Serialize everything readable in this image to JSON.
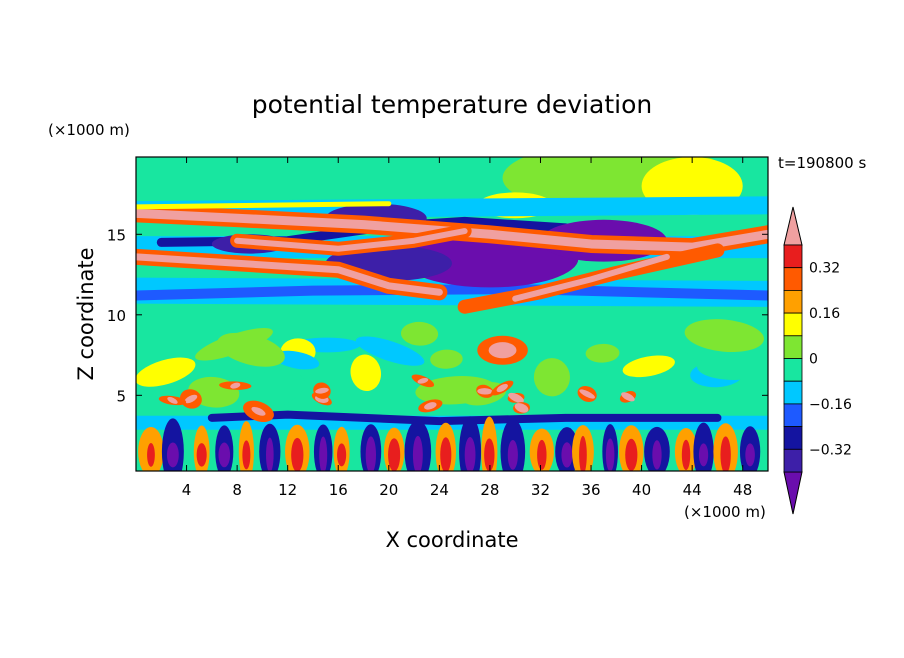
{
  "chart_data": {
    "type": "heatmap",
    "title": "potential temperature deviation",
    "time_label": "t=190800 s",
    "xlabel": "X coordinate",
    "ylabel": "Z coordinate",
    "x_unit_label": "(×1000 m)",
    "y_unit_label": "(×1000 m)",
    "xlim": [
      0,
      50
    ],
    "ylim": [
      0.3,
      19.8
    ],
    "x_ticks": [
      {
        "value": 4,
        "label": "4"
      },
      {
        "value": 8,
        "label": "8"
      },
      {
        "value": 12,
        "label": "12"
      },
      {
        "value": 16,
        "label": "16"
      },
      {
        "value": 20,
        "label": "20"
      },
      {
        "value": 24,
        "label": "24"
      },
      {
        "value": 28,
        "label": "28"
      },
      {
        "value": 32,
        "label": "32"
      },
      {
        "value": 36,
        "label": "36"
      },
      {
        "value": 40,
        "label": "40"
      },
      {
        "value": 44,
        "label": "44"
      },
      {
        "value": 48,
        "label": "48"
      }
    ],
    "y_ticks": [
      {
        "value": 5,
        "label": "5"
      },
      {
        "value": 10,
        "label": "10"
      },
      {
        "value": 15,
        "label": "15"
      }
    ],
    "colorbar": {
      "levels": [
        -0.48,
        -0.4,
        -0.32,
        -0.24,
        -0.16,
        -0.08,
        0,
        0.08,
        0.16,
        0.24,
        0.32,
        0.4
      ],
      "colors": [
        "#6a0dad",
        "#3d1fa8",
        "#1414a0",
        "#1e5aff",
        "#00c8ff",
        "#18e6a0",
        "#7ee632",
        "#ffff00",
        "#ffa000",
        "#ff5a00",
        "#e81e1e",
        "#f0a0a0"
      ],
      "labels": [
        {
          "value": 0.32,
          "label": "0.32"
        },
        {
          "value": 0.16,
          "label": "0.16"
        },
        {
          "value": 0,
          "label": "0"
        },
        {
          "value": -0.16,
          "label": "−0.16"
        },
        {
          "value": -0.32,
          "label": "−0.32"
        }
      ]
    },
    "field_description_points": []
  }
}
